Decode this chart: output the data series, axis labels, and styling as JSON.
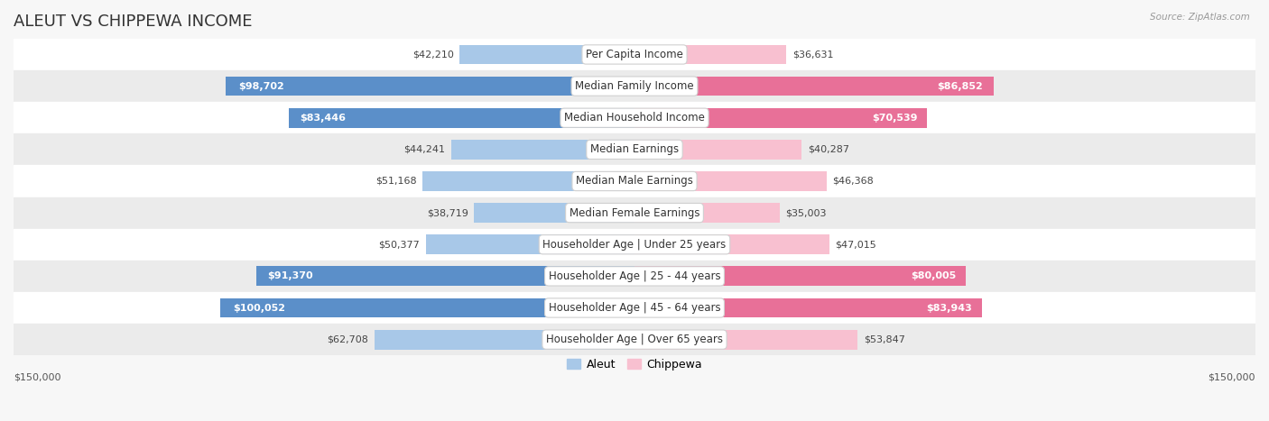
{
  "title": "ALEUT VS CHIPPEWA INCOME",
  "source": "Source: ZipAtlas.com",
  "categories": [
    "Per Capita Income",
    "Median Family Income",
    "Median Household Income",
    "Median Earnings",
    "Median Male Earnings",
    "Median Female Earnings",
    "Householder Age | Under 25 years",
    "Householder Age | 25 - 44 years",
    "Householder Age | 45 - 64 years",
    "Householder Age | Over 65 years"
  ],
  "aleut_values": [
    42210,
    98702,
    83446,
    44241,
    51168,
    38719,
    50377,
    91370,
    100052,
    62708
  ],
  "chippewa_values": [
    36631,
    86852,
    70539,
    40287,
    46368,
    35003,
    47015,
    80005,
    83943,
    53847
  ],
  "aleut_color_light": "#a8c8e8",
  "aleut_color_dark": "#5b8fc9",
  "chippewa_color_light": "#f8c0d0",
  "chippewa_color_dark": "#e87098",
  "aleut_threshold": 65000,
  "chippewa_threshold": 65000,
  "max_value": 150000,
  "bg_color": "#f7f7f7",
  "row_bg_even": "#ffffff",
  "row_bg_odd": "#ebebeb",
  "label_fontsize": 8.5,
  "title_fontsize": 13,
  "value_fontsize": 8.0,
  "legend_fontsize": 9,
  "xlabel_left": "$150,000",
  "xlabel_right": "$150,000"
}
